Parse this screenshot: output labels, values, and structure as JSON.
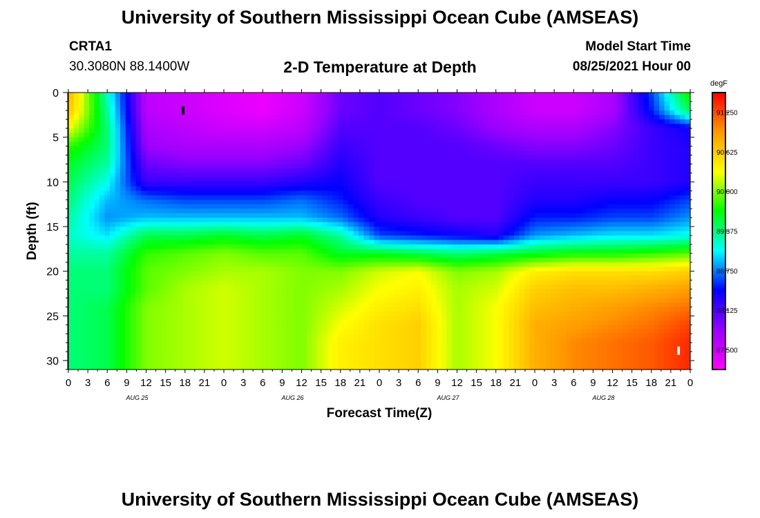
{
  "header": {
    "title": "University of Southern Mississippi Ocean Cube (AMSEAS)",
    "station": "CRTA1",
    "location": "30.3080N  88.1400W",
    "plot_title": "2-D Temperature at Depth",
    "model_label": "Model Start Time",
    "model_time": "08/25/2021 Hour 00"
  },
  "footer": {
    "title": "University of Southern Mississippi Ocean Cube (AMSEAS)"
  },
  "chart_data": {
    "type": "heatmap",
    "title": "2-D Temperature at Depth",
    "xlabel": "Forecast Time(Z)",
    "ylabel": "Depth (ft)",
    "x_tick_labels": [
      "0",
      "3",
      "6",
      "9",
      "12",
      "15",
      "18",
      "21",
      "0",
      "3",
      "6",
      "9",
      "12",
      "15",
      "18",
      "21",
      "0",
      "3",
      "6",
      "9",
      "12",
      "15",
      "18",
      "21",
      "0",
      "3",
      "6",
      "9",
      "12",
      "15",
      "18",
      "21",
      "0"
    ],
    "x_date_labels": [
      "AUG 25",
      "AUG 26",
      "AUG 27",
      "AUG 28"
    ],
    "y_ticks": [
      0,
      5,
      10,
      15,
      20,
      25,
      30
    ],
    "xlim_hours": [
      0,
      96
    ],
    "ylim_ft": [
      0,
      31
    ],
    "y_inverted": true,
    "colorbar": {
      "unit": "degF",
      "min": 87.1875,
      "max": 91.5625,
      "tick_values": [
        87.5,
        88.125,
        88.75,
        89.375,
        90.0,
        90.625,
        91.25
      ],
      "tick_labels": [
        "87.500",
        "88.125",
        "88.750",
        "89.375",
        "90.000",
        "90.625",
        "91.250"
      ],
      "colors": [
        "#ff00ff",
        "#9900ff",
        "#0000ff",
        "#00ffff",
        "#00ff00",
        "#ffff00",
        "#ff9900",
        "#ff0000"
      ]
    },
    "depths_ft": [
      0,
      2,
      4,
      6,
      8,
      10,
      12,
      14,
      16,
      18,
      20,
      22,
      24,
      26,
      28,
      31
    ],
    "hours": [
      0,
      6,
      12,
      18,
      24,
      30,
      36,
      42,
      48,
      54,
      60,
      66,
      72,
      78,
      84,
      90,
      96
    ],
    "values_degF": [
      [
        90.8,
        89.2,
        87.6,
        87.5,
        87.4,
        87.3,
        87.5,
        88.0,
        88.1,
        88.0,
        87.9,
        87.7,
        87.5,
        87.5,
        87.7,
        88.6,
        89.8
      ],
      [
        90.7,
        89.3,
        87.6,
        87.5,
        87.4,
        87.3,
        87.5,
        88.0,
        88.1,
        88.0,
        87.9,
        87.7,
        87.5,
        87.5,
        87.7,
        88.5,
        89.5
      ],
      [
        90.3,
        89.4,
        87.7,
        87.6,
        87.5,
        87.5,
        87.6,
        88.1,
        88.1,
        88.1,
        88.0,
        87.8,
        87.7,
        87.7,
        87.9,
        88.2,
        88.4
      ],
      [
        89.8,
        89.4,
        87.8,
        87.7,
        87.7,
        87.7,
        87.8,
        88.2,
        88.1,
        88.1,
        88.1,
        88.0,
        87.9,
        87.9,
        88.0,
        88.2,
        88.3
      ],
      [
        89.6,
        89.3,
        88.0,
        87.9,
        87.9,
        87.9,
        88.0,
        88.3,
        88.1,
        88.1,
        88.1,
        88.1,
        88.1,
        88.1,
        88.1,
        88.2,
        88.3
      ],
      [
        89.5,
        89.1,
        88.2,
        88.2,
        88.2,
        88.2,
        88.3,
        88.4,
        88.1,
        88.1,
        88.1,
        88.1,
        88.2,
        88.2,
        88.2,
        88.2,
        88.3
      ],
      [
        89.4,
        88.9,
        88.7,
        88.6,
        88.6,
        88.6,
        88.7,
        88.5,
        88.2,
        88.1,
        88.1,
        88.1,
        88.3,
        88.3,
        88.4,
        88.4,
        88.6
      ],
      [
        89.3,
        88.8,
        88.9,
        88.9,
        88.9,
        88.9,
        88.9,
        88.7,
        88.3,
        88.2,
        88.1,
        88.1,
        88.5,
        88.5,
        88.6,
        88.6,
        88.8
      ],
      [
        89.2,
        89.0,
        89.5,
        89.5,
        89.6,
        89.5,
        89.6,
        89.3,
        88.6,
        88.5,
        88.4,
        88.3,
        88.8,
        88.9,
        89.0,
        89.0,
        89.1
      ],
      [
        89.3,
        89.3,
        89.8,
        89.9,
        90.0,
        89.9,
        89.9,
        89.6,
        89.6,
        89.5,
        89.4,
        89.5,
        89.6,
        89.7,
        89.7,
        89.8,
        89.9
      ],
      [
        89.4,
        89.4,
        89.9,
        90.0,
        90.1,
        90.1,
        90.0,
        90.0,
        90.2,
        90.3,
        90.0,
        90.1,
        90.4,
        90.5,
        90.5,
        90.5,
        90.6
      ],
      [
        89.4,
        89.4,
        89.9,
        90.1,
        90.2,
        90.1,
        90.0,
        90.1,
        90.3,
        90.4,
        90.1,
        90.2,
        90.6,
        90.7,
        90.7,
        90.8,
        90.9
      ],
      [
        89.4,
        89.5,
        90.0,
        90.1,
        90.2,
        90.1,
        90.0,
        90.2,
        90.4,
        90.5,
        90.1,
        90.3,
        90.7,
        90.8,
        90.9,
        91.0,
        91.1
      ],
      [
        89.4,
        89.5,
        90.0,
        90.1,
        90.2,
        90.1,
        90.0,
        90.3,
        90.5,
        90.6,
        90.1,
        90.3,
        90.8,
        90.9,
        91.0,
        91.1,
        91.3
      ],
      [
        89.4,
        89.5,
        90.0,
        90.1,
        90.2,
        90.1,
        90.0,
        90.4,
        90.5,
        90.6,
        90.1,
        90.3,
        90.8,
        91.0,
        91.1,
        91.2,
        91.4
      ],
      [
        89.4,
        89.5,
        90.0,
        90.1,
        90.2,
        90.1,
        90.0,
        90.4,
        90.5,
        90.6,
        90.1,
        90.3,
        90.8,
        91.0,
        91.1,
        91.2,
        91.4
      ]
    ],
    "markers": [
      {
        "hour": 17.7,
        "depth_ft": 2.0,
        "color": "#000000"
      },
      {
        "hour": 94.2,
        "depth_ft": 28.9,
        "color": "#ffffff"
      }
    ]
  }
}
